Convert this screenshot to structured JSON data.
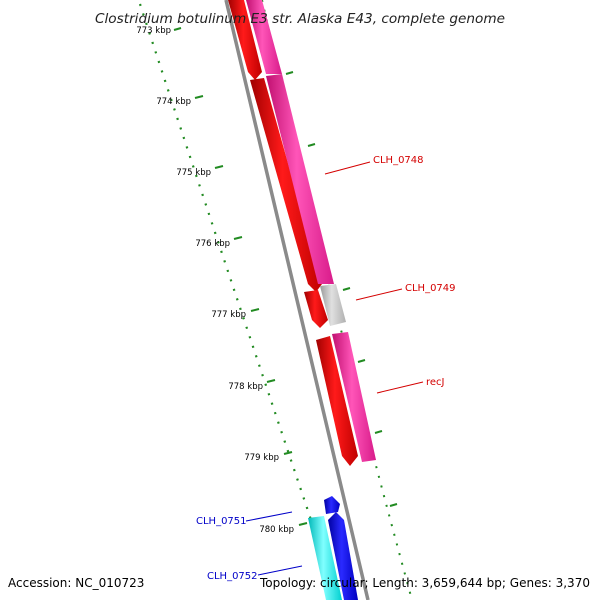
{
  "title": "Clostridium botulinum E3 str. Alaska E43, complete genome",
  "footer": {
    "accession": "Accession: NC_010723",
    "summary": "Topology: circular; Length: 3,659,644 bp; Genes: 3,370"
  },
  "ruler": {
    "unit": "kbp",
    "ticks": [
      {
        "label": "773 kbp"
      },
      {
        "label": "774 kbp"
      },
      {
        "label": "775 kbp"
      },
      {
        "label": "776 kbp"
      },
      {
        "label": "777 kbp"
      },
      {
        "label": "778 kbp"
      },
      {
        "label": "779 kbp"
      },
      {
        "label": "780 kbp"
      }
    ]
  },
  "gene_labels": [
    {
      "name": "CLH_0748",
      "color": "#d40000"
    },
    {
      "name": "CLH_0749",
      "color": "#d40000"
    },
    {
      "name": "recJ",
      "color": "#d40000"
    },
    {
      "name": "CLH_0751",
      "color": "#0000c8"
    },
    {
      "name": "CLH_0752",
      "color": "#0000c8"
    }
  ],
  "colors": {
    "cds": "#ff0000",
    "gene": "#ff1aa3",
    "pseudo_gene": "#c0c0c0",
    "cds_reverse": "#0000ff",
    "gene_reverse": "#00ffff",
    "backbone": "#8a8a8a",
    "ruler": "#228b22",
    "tick_text": "#000000"
  }
}
